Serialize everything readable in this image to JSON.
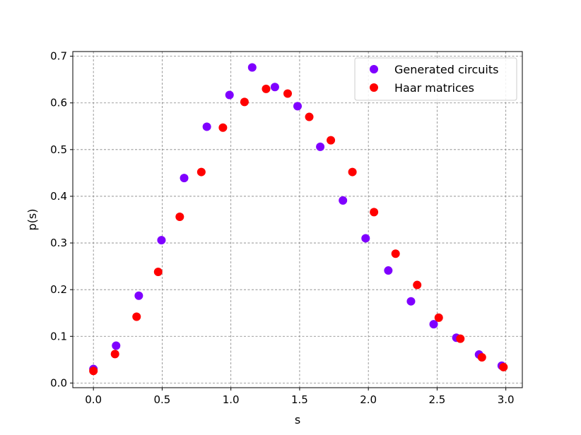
{
  "chart_data": {
    "type": "scatter",
    "xlabel": "s",
    "ylabel": "p(s)",
    "xlim": [
      -0.15,
      3.12
    ],
    "ylim": [
      -0.01,
      0.71
    ],
    "xticks": [
      "0.0",
      "0.5",
      "1.0",
      "1.5",
      "2.0",
      "2.5",
      "3.0"
    ],
    "yticks": [
      "0.0",
      "0.1",
      "0.2",
      "0.3",
      "0.4",
      "0.5",
      "0.6",
      "0.7"
    ],
    "grid": true,
    "legend_position": "top-right",
    "series": [
      {
        "name": "Generated circuits",
        "color": "#7f00ff",
        "points": [
          [
            0.0,
            0.03
          ],
          [
            0.165,
            0.08
          ],
          [
            0.33,
            0.187
          ],
          [
            0.495,
            0.306
          ],
          [
            0.66,
            0.439
          ],
          [
            0.825,
            0.549
          ],
          [
            0.99,
            0.617
          ],
          [
            1.155,
            0.676
          ],
          [
            1.32,
            0.634
          ],
          [
            1.485,
            0.593
          ],
          [
            1.65,
            0.506
          ],
          [
            1.815,
            0.391
          ],
          [
            1.98,
            0.31
          ],
          [
            2.145,
            0.241
          ],
          [
            2.31,
            0.175
          ],
          [
            2.475,
            0.126
          ],
          [
            2.64,
            0.097
          ],
          [
            2.805,
            0.061
          ],
          [
            2.97,
            0.037
          ]
        ]
      },
      {
        "name": "Haar matrices",
        "color": "#ff0000",
        "points": [
          [
            0.0,
            0.026
          ],
          [
            0.157,
            0.062
          ],
          [
            0.314,
            0.142
          ],
          [
            0.471,
            0.238
          ],
          [
            0.628,
            0.356
          ],
          [
            0.785,
            0.452
          ],
          [
            0.942,
            0.547
          ],
          [
            1.099,
            0.602
          ],
          [
            1.256,
            0.63
          ],
          [
            1.413,
            0.62
          ],
          [
            1.57,
            0.57
          ],
          [
            1.727,
            0.52
          ],
          [
            1.884,
            0.452
          ],
          [
            2.041,
            0.366
          ],
          [
            2.198,
            0.277
          ],
          [
            2.355,
            0.21
          ],
          [
            2.512,
            0.14
          ],
          [
            2.669,
            0.095
          ],
          [
            2.826,
            0.055
          ],
          [
            2.983,
            0.034
          ]
        ]
      }
    ]
  }
}
